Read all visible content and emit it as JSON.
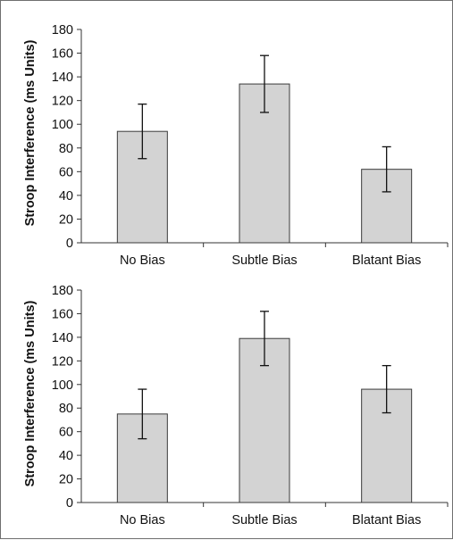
{
  "chart_data": [
    {
      "type": "bar",
      "title": "",
      "xlabel": "",
      "ylabel": "Stroop Interference (ms Units)",
      "categories": [
        "No Bias",
        "Subtle Bias",
        "Blatant Bias"
      ],
      "values": [
        94,
        134,
        62
      ],
      "error": [
        23,
        24,
        19
      ],
      "ylim": [
        0,
        180
      ],
      "yticks": [
        0,
        20,
        40,
        60,
        80,
        100,
        120,
        140,
        160,
        180
      ],
      "bar_color": "#d3d3d3",
      "grid": false,
      "legend": "none"
    },
    {
      "type": "bar",
      "title": "",
      "xlabel": "",
      "ylabel": "Stroop Interference (ms Units)",
      "categories": [
        "No Bias",
        "Subtle Bias",
        "Blatant Bias"
      ],
      "values": [
        75,
        139,
        96
      ],
      "error": [
        21,
        23,
        20
      ],
      "ylim": [
        0,
        180
      ],
      "yticks": [
        0,
        20,
        40,
        60,
        80,
        100,
        120,
        140,
        160,
        180
      ],
      "bar_color": "#d3d3d3",
      "grid": false,
      "legend": "none"
    }
  ]
}
